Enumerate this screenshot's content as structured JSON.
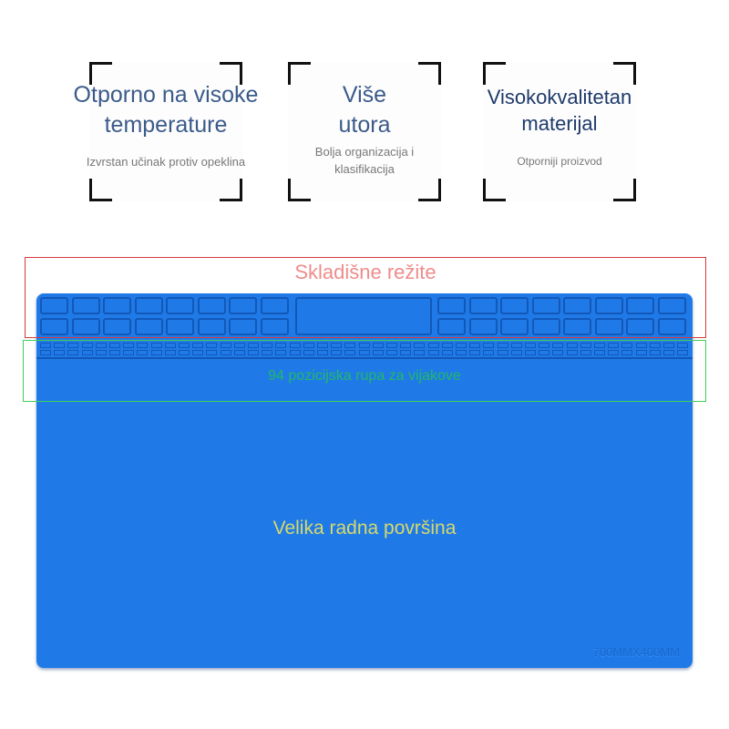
{
  "features": [
    {
      "title": "Otporno na visoke temperature",
      "subtitle": "Izvrstan učinak protiv opeklina"
    },
    {
      "title": "Više utora",
      "subtitle": "Bolja organizacija i klasifikacija"
    },
    {
      "title": "Visokokvalitetan materijal",
      "subtitle": "Otporniji proizvod"
    }
  ],
  "annotations": {
    "storage": "Skladišne režite",
    "screw_holes": "94 pozicijska rupa za vijakove",
    "work_area": "Velika radna površina",
    "size": "700MMX400MM"
  },
  "colors": {
    "mat": "#1f7ae8",
    "storage_box": "#d9383a",
    "screw_box": "#3ecf5a",
    "work_text": "#d6d96a"
  }
}
